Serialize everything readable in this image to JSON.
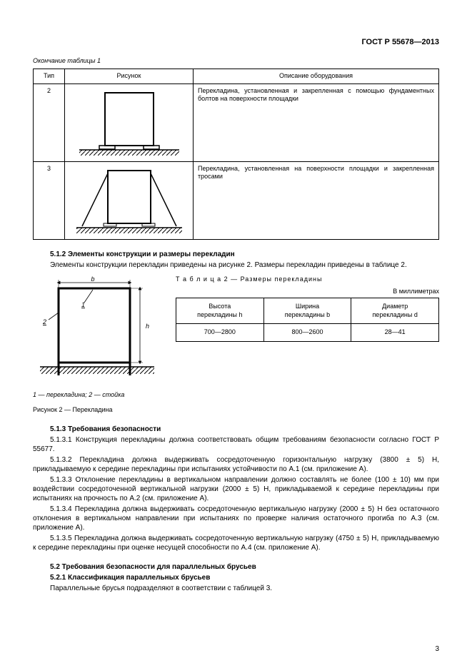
{
  "doc_id": "ГОСТ Р 55678—2013",
  "table1": {
    "caption": "Окончание таблицы 1",
    "headers": {
      "type": "Тип",
      "figure": "Рисунок",
      "desc": "Описание оборудования"
    },
    "col_widths": {
      "type": 44,
      "figure": 180,
      "desc": 340
    },
    "rows": [
      {
        "type": "2",
        "desc": "Перекладина, установленная и закрепленная с помощью фундаментных болтов на поверхности площадки"
      },
      {
        "type": "3",
        "desc": "Перекладина, установленная на поверхности площадки и закрепленная тросами"
      }
    ]
  },
  "sec512": {
    "heading": "5.1.2  Элементы конструкции и размеры перекладин",
    "text": "Элементы конструкции перекладин приведены на рисунке 2. Размеры перекладин приведены в таблице 2."
  },
  "table2": {
    "title": "Т а б л и ц а   2 — Размеры перекладины",
    "units": "В миллиметрах",
    "headers": {
      "h": "Высота\nперекладины h",
      "b": "Ширина\nперекладины b",
      "d": "Диаметр\nперекладины d"
    },
    "row": {
      "h": "700—2800",
      "b": "800—2600",
      "d": "28—41"
    }
  },
  "fig2": {
    "legend": "1 — перекладина; 2 — стойка",
    "caption": "Рисунок 2 — Перекладина",
    "labels": {
      "b": "b",
      "h": "h",
      "n1": "1",
      "n2": "2"
    }
  },
  "sec513": {
    "heading": "5.1.3  Требования безопасности",
    "p1": "5.1.3.1 Конструкция перекладины должна соответствовать общим требованиям безопасности согласно ГОСТ Р 55677.",
    "p2": "5.1.3.2 Перекладина должна выдерживать сосредоточенную горизонтальную нагрузку (3800 ± 5) Н, прикладываемую к середине перекладины при испытаниях устойчивости по А.1 (см. приложение А).",
    "p3": "5.1.3.3 Отклонение перекладины в вертикальном направлении должно составлять не более (100 ± 10) мм при воздействии сосредоточенной вертикальной нагрузки (2000 ± 5) Н, прикладываемой к середине перекладины при испытаниях на прочность по А.2 (см. приложение А).",
    "p4": "5.1.3.4 Перекладина должна выдерживать сосредоточенную вертикальную нагрузку (2000 ± 5) Н без остаточного отклонения в вертикальном направлении при испытаниях по проверке наличия остаточного прогиба по А.3 (см. приложение А).",
    "p5": "5.1.3.5 Перекладина должна выдерживать сосредоточенную вертикальную нагрузку (4750 ± 5) Н, прикладываемую к середине перекладины при оценке несущей способности по А.4 (см. приложение А)."
  },
  "sec52": {
    "heading": "5.2  Требования безопасности для параллельных брусьев",
    "sub": "5.2.1  Классификация параллельных брусьев",
    "text": "Параллельные брусья подразделяют в соответствии с таблицей 3."
  },
  "page_num": "3",
  "style": {
    "stroke": "#000000",
    "hatch_spacing": 5,
    "frame_stroke_width": 2
  }
}
